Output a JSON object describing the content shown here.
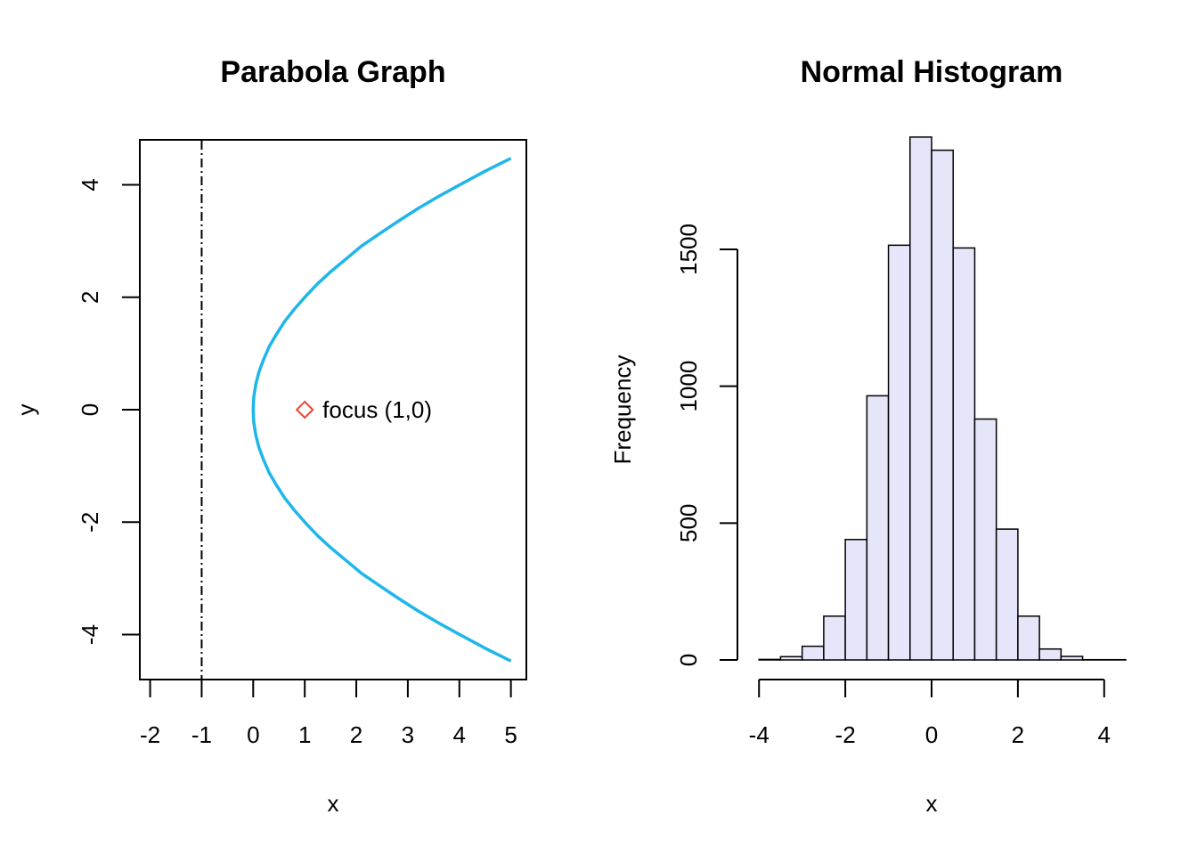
{
  "chart_data": [
    {
      "type": "line",
      "title": "Parabola Graph",
      "xlabel": "x",
      "ylabel": "y",
      "xlim": [
        -2.2,
        5.3
      ],
      "ylim": [
        -4.8,
        4.8
      ],
      "x_ticks": [
        -2,
        -1,
        0,
        1,
        2,
        3,
        4,
        5
      ],
      "y_ticks": [
        -4,
        -2,
        0,
        2,
        4
      ],
      "grid": false,
      "series": [
        {
          "equation": "y^2 = 4x",
          "color": "#1fb6ea",
          "x": [
            5,
            4.515,
            4.05,
            3.61,
            3.2,
            2.81,
            2.45,
            2.1,
            1.8,
            1.51,
            1.25,
            1.01,
            0.8,
            0.61,
            0.45,
            0.31,
            0.2,
            0.11,
            0.05,
            0.01,
            0,
            0.01,
            0.05,
            0.11,
            0.2,
            0.31,
            0.45,
            0.61,
            0.8,
            1.01,
            1.25,
            1.51,
            1.8,
            2.1,
            2.45,
            2.81,
            3.2,
            3.61,
            4.05,
            4.515,
            5
          ],
          "y": [
            4.47,
            4.25,
            4.02,
            3.8,
            3.58,
            3.35,
            3.13,
            2.91,
            2.68,
            2.46,
            2.24,
            2.01,
            1.79,
            1.57,
            1.34,
            1.12,
            0.89,
            0.67,
            0.45,
            0.22,
            0,
            -0.22,
            -0.45,
            -0.67,
            -0.89,
            -1.12,
            -1.34,
            -1.57,
            -1.79,
            -2.01,
            -2.24,
            -2.46,
            -2.68,
            -2.91,
            -3.13,
            -3.35,
            -3.58,
            -3.8,
            -4.02,
            -4.25,
            -4.47
          ]
        }
      ],
      "directrix": {
        "x": -1,
        "style": "dot-dash",
        "color": "#000000"
      },
      "focus": {
        "x": 1,
        "y": 0,
        "marker": "diamond",
        "color": "#e8483a",
        "label": "focus (1,0)"
      }
    },
    {
      "type": "bar",
      "title": "Normal Histogram",
      "xlabel": "x",
      "ylabel": "Frequency",
      "xlim": [
        -4.5,
        4.5
      ],
      "ylim": [
        0,
        1900
      ],
      "x_ticks": [
        "-4",
        "-2",
        "0",
        "2",
        "4"
      ],
      "x_tick_values": [
        -4,
        -2,
        0,
        2,
        4
      ],
      "y_ticks": [
        "0",
        "500",
        "1000",
        "1500"
      ],
      "y_tick_values": [
        0,
        500,
        1000,
        1500
      ],
      "bar_color": "#e6e6fa",
      "bins": [
        {
          "x0": -4.0,
          "x1": -3.5,
          "count": 2
        },
        {
          "x0": -3.5,
          "x1": -3.0,
          "count": 12
        },
        {
          "x0": -3.0,
          "x1": -2.5,
          "count": 50
        },
        {
          "x0": -2.5,
          "x1": -2.0,
          "count": 160
        },
        {
          "x0": -2.0,
          "x1": -1.5,
          "count": 440
        },
        {
          "x0": -1.5,
          "x1": -1.0,
          "count": 965
        },
        {
          "x0": -1.0,
          "x1": -0.5,
          "count": 1515
        },
        {
          "x0": -0.5,
          "x1": 0.0,
          "count": 1910
        },
        {
          "x0": 0.0,
          "x1": 0.5,
          "count": 1862
        },
        {
          "x0": 0.5,
          "x1": 1.0,
          "count": 1505
        },
        {
          "x0": 1.0,
          "x1": 1.5,
          "count": 880
        },
        {
          "x0": 1.5,
          "x1": 2.0,
          "count": 478
        },
        {
          "x0": 2.0,
          "x1": 2.5,
          "count": 160
        },
        {
          "x0": 2.5,
          "x1": 3.0,
          "count": 40
        },
        {
          "x0": 3.0,
          "x1": 3.5,
          "count": 13
        },
        {
          "x0": 3.5,
          "x1": 4.5,
          "count": 1
        }
      ]
    }
  ]
}
